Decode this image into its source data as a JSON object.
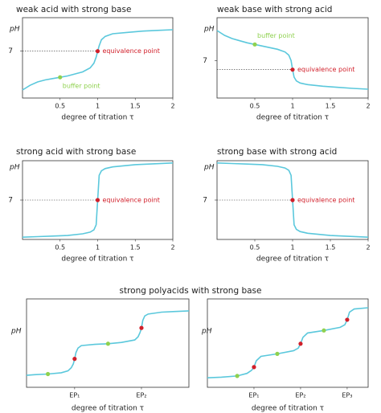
{
  "polyacid_title": "strong polyacids with strong base",
  "chart_data": [
    {
      "type": "line",
      "title": "weak acid with strong base",
      "ylabel": "pH",
      "xlabel": "degree of titration τ",
      "xlim": [
        0,
        2
      ],
      "xticks": [
        0.5,
        1,
        1.5,
        2
      ],
      "ylim": [
        0,
        12
      ],
      "yticks": [
        7
      ],
      "color": "#5bc8dc",
      "x": [
        0,
        0.1,
        0.2,
        0.3,
        0.4,
        0.5,
        0.6,
        0.7,
        0.8,
        0.9,
        0.95,
        0.98,
        1,
        1.02,
        1.05,
        1.1,
        1.2,
        1.4,
        1.6,
        1.8,
        2
      ],
      "values": [
        1.2,
        1.9,
        2.4,
        2.7,
        2.9,
        3.1,
        3.3,
        3.6,
        3.9,
        4.5,
        5.2,
        6.1,
        7,
        7.8,
        8.7,
        9.2,
        9.6,
        9.8,
        10,
        10.1,
        10.2
      ],
      "points": [
        {
          "x": 0.5,
          "y": 3.1,
          "color": "#8fd14f",
          "label": "buffer point"
        },
        {
          "x": 1,
          "y": 7,
          "color": "#d11f2a",
          "label": "equivalence point",
          "guide": true
        }
      ]
    },
    {
      "type": "line",
      "title": "weak base with strong acid",
      "ylabel": "pH",
      "xlabel": "degree of titration τ",
      "xlim": [
        0,
        2
      ],
      "xticks": [
        0.5,
        1,
        1.5,
        2
      ],
      "ylim": [
        0,
        15
      ],
      "yticks": [
        7
      ],
      "color": "#5bc8dc",
      "x": [
        0,
        0.1,
        0.2,
        0.3,
        0.4,
        0.5,
        0.6,
        0.7,
        0.8,
        0.9,
        0.95,
        0.98,
        1,
        1.02,
        1.05,
        1.1,
        1.2,
        1.4,
        1.6,
        1.8,
        2
      ],
      "values": [
        12.6,
        11.7,
        11.1,
        10.7,
        10.3,
        10,
        9.7,
        9.4,
        9.1,
        8.6,
        8.0,
        7.0,
        5.3,
        3.9,
        3.2,
        2.8,
        2.5,
        2.2,
        2.0,
        1.8,
        1.65
      ],
      "points": [
        {
          "x": 0.5,
          "y": 10,
          "color": "#8fd14f",
          "label": "buffer point"
        },
        {
          "x": 1,
          "y": 5.3,
          "color": "#d11f2a",
          "label": "equivalence point",
          "guide": true
        }
      ]
    },
    {
      "type": "line",
      "title": "strong acid with strong base",
      "ylabel": "pH",
      "xlabel": "degree of titration τ",
      "xlim": [
        0,
        2
      ],
      "xticks": [
        0.5,
        1,
        1.5,
        2
      ],
      "ylim": [
        0,
        14
      ],
      "yticks": [
        7
      ],
      "color": "#5bc8dc",
      "x": [
        0,
        0.2,
        0.4,
        0.6,
        0.8,
        0.9,
        0.95,
        0.98,
        1,
        1.02,
        1.05,
        1.1,
        1.2,
        1.5,
        2
      ],
      "values": [
        0.4,
        0.5,
        0.6,
        0.7,
        1.0,
        1.3,
        1.7,
        2.6,
        7,
        11.4,
        12.2,
        12.6,
        12.9,
        13.3,
        13.6
      ],
      "points": [
        {
          "x": 1,
          "y": 7,
          "color": "#d11f2a",
          "label": "equivalence point",
          "guide": true
        }
      ]
    },
    {
      "type": "line",
      "title": "strong base with strong acid",
      "ylabel": "pH",
      "xlabel": "degree of titration τ",
      "xlim": [
        0,
        2
      ],
      "xticks": [
        0.5,
        1,
        1.5,
        2
      ],
      "ylim": [
        0,
        14
      ],
      "yticks": [
        7
      ],
      "color": "#5bc8dc",
      "x": [
        0,
        0.2,
        0.4,
        0.6,
        0.8,
        0.9,
        0.95,
        0.98,
        1,
        1.02,
        1.05,
        1.1,
        1.2,
        1.5,
        2
      ],
      "values": [
        13.6,
        13.5,
        13.4,
        13.3,
        13.0,
        12.7,
        12.3,
        11.4,
        7,
        2.6,
        1.8,
        1.4,
        1.1,
        0.7,
        0.4
      ],
      "points": [
        {
          "x": 1,
          "y": 7,
          "color": "#d11f2a",
          "label": "equivalence point",
          "guide": true
        }
      ]
    },
    {
      "type": "line",
      "ylabel": "pH",
      "xlabel": "degree of titration τ",
      "xlim": [
        0.28,
        2.71
      ],
      "xticks": [
        {
          "value": 1,
          "label": "EP₁"
        },
        {
          "value": 2,
          "label": "EP₂"
        }
      ],
      "ylim": [
        0,
        14
      ],
      "color": "#5bc8dc",
      "x": [
        0.28,
        0.4,
        0.6,
        0.8,
        0.9,
        0.95,
        0.98,
        1,
        1.02,
        1.05,
        1.1,
        1.3,
        1.5,
        1.7,
        1.9,
        1.95,
        1.98,
        2,
        2.02,
        2.05,
        2.1,
        2.3,
        2.5,
        2.71
      ],
      "values": [
        1.9,
        2.0,
        2.1,
        2.3,
        2.6,
        3.1,
        3.7,
        4.5,
        5.5,
        6.2,
        6.6,
        6.8,
        6.9,
        7.1,
        7.5,
        8.0,
        8.7,
        9.4,
        10.6,
        11.3,
        11.6,
        11.9,
        12.0,
        12.1
      ],
      "points": [
        {
          "x": 0.6,
          "y": 2.1,
          "color": "#8fd14f"
        },
        {
          "x": 1,
          "y": 4.5,
          "color": "#d11f2a"
        },
        {
          "x": 1.5,
          "y": 6.9,
          "color": "#8fd14f"
        },
        {
          "x": 2,
          "y": 9.4,
          "color": "#d11f2a"
        }
      ]
    },
    {
      "type": "line",
      "ylabel": "pH",
      "xlabel": "degree of titration τ",
      "xlim": [
        0,
        3.45
      ],
      "xticks": [
        {
          "value": 1,
          "label": "EP₁"
        },
        {
          "value": 2,
          "label": "EP₂"
        },
        {
          "value": 3,
          "label": "EP₃"
        }
      ],
      "ylim": [
        0,
        14
      ],
      "color": "#5bc8dc",
      "x": [
        0,
        0.3,
        0.64,
        0.85,
        0.95,
        1,
        1.05,
        1.15,
        1.5,
        1.85,
        1.95,
        2,
        2.05,
        2.15,
        2.5,
        2.85,
        2.95,
        3,
        3.05,
        3.15,
        3.45
      ],
      "values": [
        1.5,
        1.6,
        1.8,
        2.2,
        2.7,
        3.2,
        4.2,
        4.9,
        5.3,
        5.8,
        6.2,
        6.9,
        7.9,
        8.6,
        9.0,
        9.5,
        9.9,
        10.7,
        11.9,
        12.4,
        12.6
      ],
      "points": [
        {
          "x": 0.64,
          "y": 1.8,
          "color": "#8fd14f"
        },
        {
          "x": 1,
          "y": 3.2,
          "color": "#d11f2a"
        },
        {
          "x": 1.5,
          "y": 5.3,
          "color": "#8fd14f"
        },
        {
          "x": 2,
          "y": 6.9,
          "color": "#d11f2a"
        },
        {
          "x": 2.5,
          "y": 9.0,
          "color": "#8fd14f"
        },
        {
          "x": 3,
          "y": 10.7,
          "color": "#d11f2a"
        }
      ]
    }
  ]
}
